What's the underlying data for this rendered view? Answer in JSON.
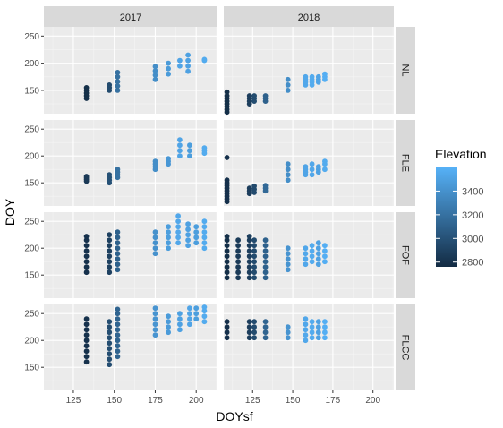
{
  "chart_data": {
    "type": "scatter",
    "layout": "facet grid",
    "xlabel": "DOYsf",
    "ylabel": "DOY",
    "col_strips": [
      "2017",
      "2018"
    ],
    "row_strips": [
      "NL",
      "FLE",
      "FOF",
      "FLCC"
    ],
    "xlim": [
      107,
      213
    ],
    "ylim": [
      107,
      267
    ],
    "x_ticks": [
      125,
      150,
      175,
      200
    ],
    "y_ticks": [
      150,
      200,
      250
    ],
    "grid": "on",
    "legend": {
      "title": "Elevation",
      "position": "right",
      "ticks": [
        3400,
        3200,
        3000,
        2800
      ],
      "low_color": "#132B43",
      "high_color": "#56B1F7",
      "range": [
        2760,
        3600
      ]
    },
    "colors": {
      "panel_bg": "#EBEBEB",
      "strip_bg": "#D9D9D9",
      "grid_major": "#FFFFFF",
      "text": "#4D4D4D"
    },
    "groups": [
      {
        "year": "2017",
        "site": "NL",
        "x": 133,
        "elevation": 2790,
        "y": [
          135,
          140,
          145,
          150,
          155
        ]
      },
      {
        "year": "2017",
        "site": "NL",
        "x": 147,
        "elevation": 2960,
        "y": [
          150,
          155,
          160
        ]
      },
      {
        "year": "2017",
        "site": "NL",
        "x": 152,
        "elevation": 3200,
        "y": [
          150,
          158,
          166,
          175,
          183
        ]
      },
      {
        "year": "2017",
        "site": "NL",
        "x": 175,
        "elevation": 3380,
        "y": [
          170,
          178,
          186,
          194
        ]
      },
      {
        "year": "2017",
        "site": "NL",
        "x": 183,
        "elevation": 3460,
        "y": [
          180,
          190,
          200
        ]
      },
      {
        "year": "2017",
        "site": "NL",
        "x": 190,
        "elevation": 3520,
        "y": [
          195,
          205
        ]
      },
      {
        "year": "2017",
        "site": "NL",
        "x": 195,
        "elevation": 3500,
        "y": [
          185,
          195,
          205,
          215
        ]
      },
      {
        "year": "2017",
        "site": "NL",
        "x": 205,
        "elevation": 3560,
        "y": [
          205,
          207
        ]
      },
      {
        "year": "2018",
        "site": "NL",
        "x": 109,
        "elevation": 2790,
        "y": [
          110,
          115,
          120,
          125,
          130,
          135,
          140,
          147
        ]
      },
      {
        "year": "2018",
        "site": "NL",
        "x": 123,
        "elevation": 2880,
        "y": [
          125,
          130,
          135,
          140
        ]
      },
      {
        "year": "2018",
        "site": "NL",
        "x": 126,
        "elevation": 2970,
        "y": [
          130,
          135,
          140
        ]
      },
      {
        "year": "2018",
        "site": "NL",
        "x": 133,
        "elevation": 3100,
        "y": [
          130,
          135,
          140
        ]
      },
      {
        "year": "2018",
        "site": "NL",
        "x": 147,
        "elevation": 3380,
        "y": [
          150,
          160,
          170
        ]
      },
      {
        "year": "2018",
        "site": "NL",
        "x": 158,
        "elevation": 3540,
        "y": [
          160,
          165,
          170,
          175
        ]
      },
      {
        "year": "2018",
        "site": "NL",
        "x": 162,
        "elevation": 3560,
        "y": [
          160,
          165,
          170,
          175
        ]
      },
      {
        "year": "2018",
        "site": "NL",
        "x": 166,
        "elevation": 3520,
        "y": [
          165,
          170,
          175
        ]
      },
      {
        "year": "2018",
        "site": "NL",
        "x": 170,
        "elevation": 3580,
        "y": [
          170,
          175,
          180
        ]
      },
      {
        "year": "2017",
        "site": "FLE",
        "x": 133,
        "elevation": 2850,
        "y": [
          153,
          156,
          159,
          162
        ]
      },
      {
        "year": "2017",
        "site": "FLE",
        "x": 147,
        "elevation": 3000,
        "y": [
          150,
          155,
          160,
          165
        ]
      },
      {
        "year": "2017",
        "site": "FLE",
        "x": 152,
        "elevation": 3200,
        "y": [
          160,
          165,
          170,
          175
        ]
      },
      {
        "year": "2017",
        "site": "FLE",
        "x": 175,
        "elevation": 3380,
        "y": [
          175,
          180,
          185,
          190
        ]
      },
      {
        "year": "2017",
        "site": "FLE",
        "x": 183,
        "elevation": 3440,
        "y": [
          185,
          190,
          195
        ]
      },
      {
        "year": "2017",
        "site": "FLE",
        "x": 190,
        "elevation": 3520,
        "y": [
          200,
          210,
          220,
          230
        ]
      },
      {
        "year": "2017",
        "site": "FLE",
        "x": 196,
        "elevation": 3480,
        "y": [
          200,
          210,
          220
        ]
      },
      {
        "year": "2017",
        "site": "FLE",
        "x": 205,
        "elevation": 3560,
        "y": [
          205,
          210,
          215
        ]
      },
      {
        "year": "2018",
        "site": "FLE",
        "x": 109,
        "elevation": 2800,
        "y": [
          115,
          120,
          125,
          130,
          135,
          140,
          145,
          150,
          155,
          197
        ]
      },
      {
        "year": "2018",
        "site": "FLE",
        "x": 123,
        "elevation": 2880,
        "y": [
          130,
          135,
          140
        ]
      },
      {
        "year": "2018",
        "site": "FLE",
        "x": 126,
        "elevation": 2960,
        "y": [
          132,
          138,
          144
        ]
      },
      {
        "year": "2018",
        "site": "FLE",
        "x": 133,
        "elevation": 3150,
        "y": [
          135,
          140,
          145
        ]
      },
      {
        "year": "2018",
        "site": "FLE",
        "x": 147,
        "elevation": 3380,
        "y": [
          155,
          165,
          175,
          185
        ]
      },
      {
        "year": "2018",
        "site": "FLE",
        "x": 158,
        "elevation": 3520,
        "y": [
          165,
          170,
          175,
          180
        ]
      },
      {
        "year": "2018",
        "site": "FLE",
        "x": 162,
        "elevation": 3540,
        "y": [
          165,
          175,
          185
        ]
      },
      {
        "year": "2018",
        "site": "FLE",
        "x": 166,
        "elevation": 3500,
        "y": [
          170,
          175,
          180
        ]
      },
      {
        "year": "2018",
        "site": "FLE",
        "x": 170,
        "elevation": 3560,
        "y": [
          175,
          185,
          190
        ]
      },
      {
        "year": "2017",
        "site": "FOF",
        "x": 133,
        "elevation": 2800,
        "y": [
          155,
          165,
          175,
          185,
          195,
          205,
          215,
          222
        ]
      },
      {
        "year": "2017",
        "site": "FOF",
        "x": 147,
        "elevation": 2900,
        "y": [
          155,
          165,
          175,
          185,
          195,
          205,
          215,
          225
        ]
      },
      {
        "year": "2017",
        "site": "FOF",
        "x": 152,
        "elevation": 3100,
        "y": [
          160,
          170,
          180,
          190,
          200,
          210,
          220,
          230
        ]
      },
      {
        "year": "2017",
        "site": "FOF",
        "x": 175,
        "elevation": 3400,
        "y": [
          190,
          200,
          210,
          220,
          230
        ]
      },
      {
        "year": "2017",
        "site": "FOF",
        "x": 183,
        "elevation": 3480,
        "y": [
          200,
          210,
          220,
          230,
          240
        ]
      },
      {
        "year": "2017",
        "site": "FOF",
        "x": 189,
        "elevation": 3540,
        "y": [
          210,
          220,
          230,
          240,
          250,
          260
        ]
      },
      {
        "year": "2017",
        "site": "FOF",
        "x": 195,
        "elevation": 3500,
        "y": [
          205,
          215,
          225,
          235,
          245
        ]
      },
      {
        "year": "2017",
        "site": "FOF",
        "x": 200,
        "elevation": 3480,
        "y": [
          210,
          220,
          230,
          240
        ]
      },
      {
        "year": "2017",
        "site": "FOF",
        "x": 205,
        "elevation": 3560,
        "y": [
          200,
          210,
          220,
          230,
          240,
          250
        ]
      },
      {
        "year": "2018",
        "site": "FOF",
        "x": 109,
        "elevation": 2790,
        "y": [
          145,
          155,
          165,
          175,
          185,
          195,
          205,
          215,
          222
        ]
      },
      {
        "year": "2018",
        "site": "FOF",
        "x": 116,
        "elevation": 2860,
        "y": [
          145,
          155,
          165,
          175,
          185,
          195,
          205,
          215
        ]
      },
      {
        "year": "2018",
        "site": "FOF",
        "x": 123,
        "elevation": 2880,
        "y": [
          145,
          155,
          165,
          175,
          185,
          195,
          205,
          215,
          222
        ]
      },
      {
        "year": "2018",
        "site": "FOF",
        "x": 126,
        "elevation": 2960,
        "y": [
          145,
          155,
          165,
          175,
          185,
          195,
          205,
          215
        ]
      },
      {
        "year": "2018",
        "site": "FOF",
        "x": 133,
        "elevation": 3100,
        "y": [
          145,
          155,
          165,
          175,
          185,
          195,
          205,
          215
        ]
      },
      {
        "year": "2018",
        "site": "FOF",
        "x": 147,
        "elevation": 3420,
        "y": [
          160,
          170,
          180,
          190,
          200
        ]
      },
      {
        "year": "2018",
        "site": "FOF",
        "x": 158,
        "elevation": 3540,
        "y": [
          170,
          180,
          190,
          200
        ]
      },
      {
        "year": "2018",
        "site": "FOF",
        "x": 162,
        "elevation": 3560,
        "y": [
          175,
          185,
          195,
          205
        ]
      },
      {
        "year": "2018",
        "site": "FOF",
        "x": 166,
        "elevation": 3500,
        "y": [
          170,
          180,
          190,
          200,
          210
        ]
      },
      {
        "year": "2018",
        "site": "FOF",
        "x": 170,
        "elevation": 3580,
        "y": [
          175,
          185,
          195,
          205
        ]
      },
      {
        "year": "2017",
        "site": "FLCC",
        "x": 133,
        "elevation": 2800,
        "y": [
          160,
          170,
          180,
          190,
          200,
          210,
          220,
          230,
          240
        ]
      },
      {
        "year": "2017",
        "site": "FLCC",
        "x": 147,
        "elevation": 2980,
        "y": [
          155,
          165,
          175,
          185,
          195,
          205,
          215,
          225,
          235
        ]
      },
      {
        "year": "2017",
        "site": "FLCC",
        "x": 152,
        "elevation": 3120,
        "y": [
          170,
          180,
          190,
          200,
          210,
          220,
          230,
          240,
          250,
          258
        ]
      },
      {
        "year": "2017",
        "site": "FLCC",
        "x": 175,
        "elevation": 3420,
        "y": [
          210,
          220,
          230,
          240,
          250,
          260
        ]
      },
      {
        "year": "2017",
        "site": "FLCC",
        "x": 183,
        "elevation": 3460,
        "y": [
          215,
          225,
          235,
          245
        ]
      },
      {
        "year": "2017",
        "site": "FLCC",
        "x": 190,
        "elevation": 3500,
        "y": [
          220,
          230,
          240,
          250
        ]
      },
      {
        "year": "2017",
        "site": "FLCC",
        "x": 196,
        "elevation": 3520,
        "y": [
          230,
          240,
          250,
          260
        ]
      },
      {
        "year": "2017",
        "site": "FLCC",
        "x": 200,
        "elevation": 3480,
        "y": [
          240,
          250,
          260
        ]
      },
      {
        "year": "2017",
        "site": "FLCC",
        "x": 205,
        "elevation": 3560,
        "y": [
          235,
          245,
          255,
          262
        ]
      },
      {
        "year": "2018",
        "site": "FLCC",
        "x": 109,
        "elevation": 2800,
        "y": [
          205,
          215,
          225,
          235
        ]
      },
      {
        "year": "2018",
        "site": "FLCC",
        "x": 123,
        "elevation": 2880,
        "y": [
          205,
          215,
          225,
          235
        ]
      },
      {
        "year": "2018",
        "site": "FLCC",
        "x": 126,
        "elevation": 2960,
        "y": [
          205,
          215,
          225,
          235
        ]
      },
      {
        "year": "2018",
        "site": "FLCC",
        "x": 133,
        "elevation": 3120,
        "y": [
          205,
          215,
          225,
          235
        ]
      },
      {
        "year": "2018",
        "site": "FLCC",
        "x": 147,
        "elevation": 3420,
        "y": [
          205,
          215,
          225
        ]
      },
      {
        "year": "2018",
        "site": "FLCC",
        "x": 158,
        "elevation": 3540,
        "y": [
          200,
          210,
          220,
          230,
          240
        ]
      },
      {
        "year": "2018",
        "site": "FLCC",
        "x": 162,
        "elevation": 3560,
        "y": [
          205,
          215,
          225,
          235
        ]
      },
      {
        "year": "2018",
        "site": "FLCC",
        "x": 166,
        "elevation": 3500,
        "y": [
          205,
          215,
          225,
          235
        ]
      },
      {
        "year": "2018",
        "site": "FLCC",
        "x": 170,
        "elevation": 3580,
        "y": [
          205,
          215,
          225,
          235
        ]
      }
    ]
  }
}
